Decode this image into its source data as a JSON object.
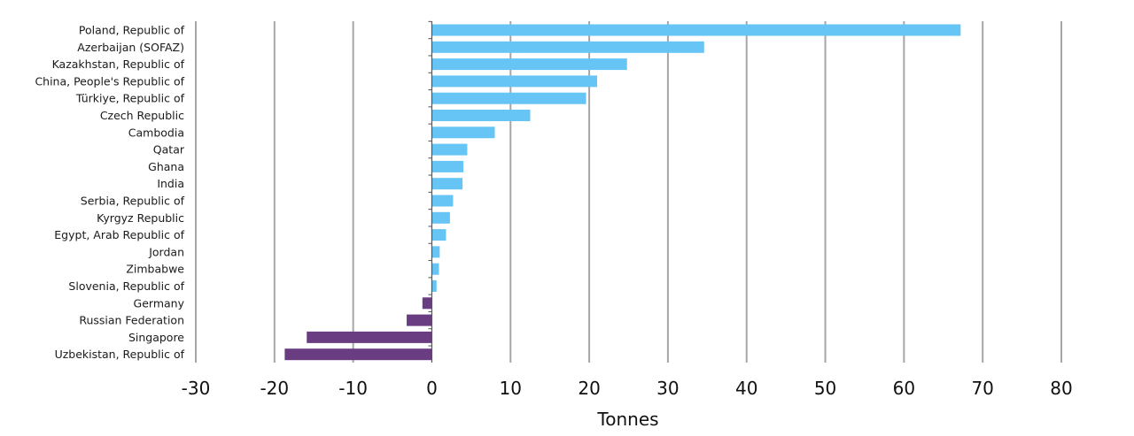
{
  "chart_data": {
    "type": "bar",
    "orientation": "horizontal",
    "title": "",
    "xlabel": "Tonnes",
    "ylabel": "",
    "xlim": [
      -30,
      80
    ],
    "xticks": [
      -30,
      -20,
      -10,
      0,
      10,
      20,
      30,
      40,
      50,
      60,
      70,
      80
    ],
    "grid": "vertical",
    "positive_color": "#66c5f5",
    "negative_color": "#6a3d83",
    "categories": [
      "Poland, Republic of",
      "Azerbaijan (SOFAZ)",
      "Kazakhstan, Republic of",
      "China, People's Republic of",
      "Türkiye, Republic of",
      "Czech Republic",
      "Cambodia",
      "Qatar",
      "Ghana",
      "India",
      "Serbia, Republic of",
      "Kyrgyz Republic",
      "Egypt, Arab Republic of",
      "Jordan",
      "Zimbabwe",
      "Slovenia, Republic of",
      "Germany",
      "Russian Federation",
      "Singapore",
      "Uzbekistan, Republic of"
    ],
    "values": [
      67.2,
      34.6,
      24.8,
      21.0,
      19.6,
      12.5,
      8.0,
      4.5,
      4.0,
      3.9,
      2.7,
      2.3,
      1.8,
      1.0,
      0.9,
      0.6,
      -1.2,
      -3.2,
      -15.9,
      -18.7
    ]
  }
}
